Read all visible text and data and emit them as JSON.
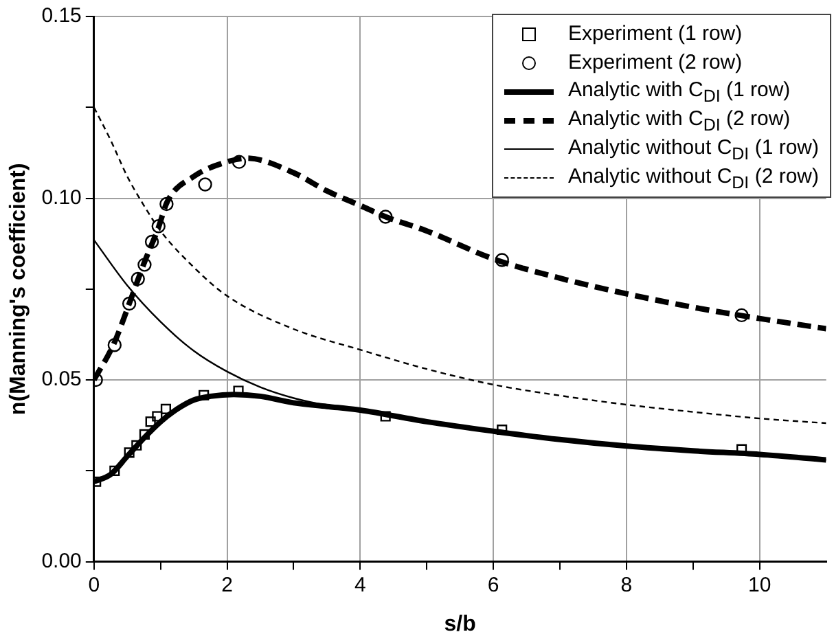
{
  "chart_data": {
    "type": "line",
    "xlabel": "s/b",
    "ylabel": "n(Manning's coefficient)",
    "xlim": [
      0,
      11
    ],
    "xticks": [
      0,
      {
        "value": 1,
        "label": null
      },
      2,
      {
        "value": 3,
        "label": null
      },
      4,
      {
        "value": 5,
        "label": null
      },
      6,
      {
        "value": 7,
        "label": null
      },
      8,
      {
        "value": 9,
        "label": null
      },
      10
    ],
    "ylim": [
      0,
      0.15
    ],
    "yticks": [
      {
        "value": 0,
        "label": "0.00"
      },
      {
        "value": 0.025,
        "label": null
      },
      0.05,
      {
        "value": 0.075,
        "label": null
      },
      {
        "value": 0.1,
        "label": "0.10"
      },
      {
        "value": 0.125,
        "label": null
      },
      0.15
    ],
    "grid": true,
    "legend": "top right",
    "series": [
      {
        "name": "Experiment (1 row)",
        "type": "scatter",
        "marker": "square",
        "color": "#000000",
        "x": [
          0.03,
          0.31,
          0.53,
          0.64,
          0.76,
          0.85,
          0.95,
          1.08,
          1.65,
          2.17,
          4.38,
          6.13,
          9.73
        ],
        "values": [
          0.022,
          0.025,
          0.03,
          0.032,
          0.035,
          0.0385,
          0.04,
          0.042,
          0.0458,
          0.047,
          0.04,
          0.0363,
          0.0309
        ]
      },
      {
        "name": "Experiment (2 row)",
        "type": "scatter",
        "marker": "circle",
        "color": "#000000",
        "x": [
          0.03,
          0.31,
          0.53,
          0.66,
          0.76,
          0.87,
          0.97,
          1.09,
          1.67,
          2.18,
          4.38,
          6.13,
          9.73
        ],
        "values": [
          0.05,
          0.0596,
          0.071,
          0.0778,
          0.0817,
          0.088,
          0.0923,
          0.0984,
          0.1038,
          0.11,
          0.0949,
          0.083,
          0.0678
        ]
      },
      {
        "name": "Analytic with C$_{DI}$ (1 row)",
        "type": "line",
        "marker": "none",
        "line_style": "solid",
        "color": "#000000",
        "x": [
          0,
          0.25,
          0.5,
          0.75,
          1,
          1.25,
          1.5,
          1.75,
          2.1,
          2.5,
          3,
          3.5,
          4,
          5,
          6,
          7,
          8,
          9,
          10,
          11
        ],
        "values": [
          0.022,
          0.024,
          0.029,
          0.034,
          0.0385,
          0.042,
          0.0445,
          0.0455,
          0.046,
          0.0455,
          0.0437,
          0.0427,
          0.0417,
          0.0385,
          0.0359,
          0.0336,
          0.0318,
          0.0305,
          0.0295,
          0.028
        ]
      },
      {
        "name": "Analytic with C$_{DI}$ (2 row)",
        "type": "line",
        "marker": "none",
        "line_style": "dashed",
        "color": "#000000",
        "x": [
          0,
          0.3,
          0.53,
          0.75,
          0.97,
          1.1,
          1.5,
          2,
          2.3,
          3,
          3.5,
          4,
          4.38,
          5,
          6,
          7,
          8,
          9,
          10,
          11
        ],
        "values": [
          0.05,
          0.06,
          0.071,
          0.082,
          0.092,
          0.099,
          0.106,
          0.11,
          0.111,
          0.107,
          0.102,
          0.098,
          0.0949,
          0.091,
          0.0833,
          0.078,
          0.0737,
          0.07,
          0.0669,
          0.0641
        ]
      },
      {
        "name": "Analytic without C$_{DI}$ (1 row)",
        "type": "line",
        "marker": "none",
        "line_style": "solid",
        "color": "#000000",
        "x": [
          0,
          0.5,
          1,
          1.5,
          2,
          2.5,
          3,
          3.5,
          4,
          5,
          6,
          7,
          8,
          9,
          10,
          11
        ],
        "values": [
          0.0885,
          0.076,
          0.066,
          0.058,
          0.0523,
          0.048,
          0.045,
          0.043,
          0.0417,
          0.0385,
          0.0359,
          0.0336,
          0.0318,
          0.0305,
          0.0295,
          0.028
        ]
      },
      {
        "name": "Analytic without C$_{DI}$ (2 row)",
        "type": "line",
        "marker": "none",
        "line_style": "dashed",
        "color": "#000000",
        "x": [
          0,
          0.25,
          0.5,
          0.75,
          1,
          1.5,
          2,
          3,
          4,
          5,
          6,
          7,
          8,
          9,
          10,
          11
        ],
        "values": [
          0.125,
          0.116,
          0.106,
          0.098,
          0.091,
          0.081,
          0.0731,
          0.064,
          0.0583,
          0.053,
          0.0487,
          0.0457,
          0.0432,
          0.0412,
          0.0394,
          0.0381
        ]
      }
    ]
  }
}
